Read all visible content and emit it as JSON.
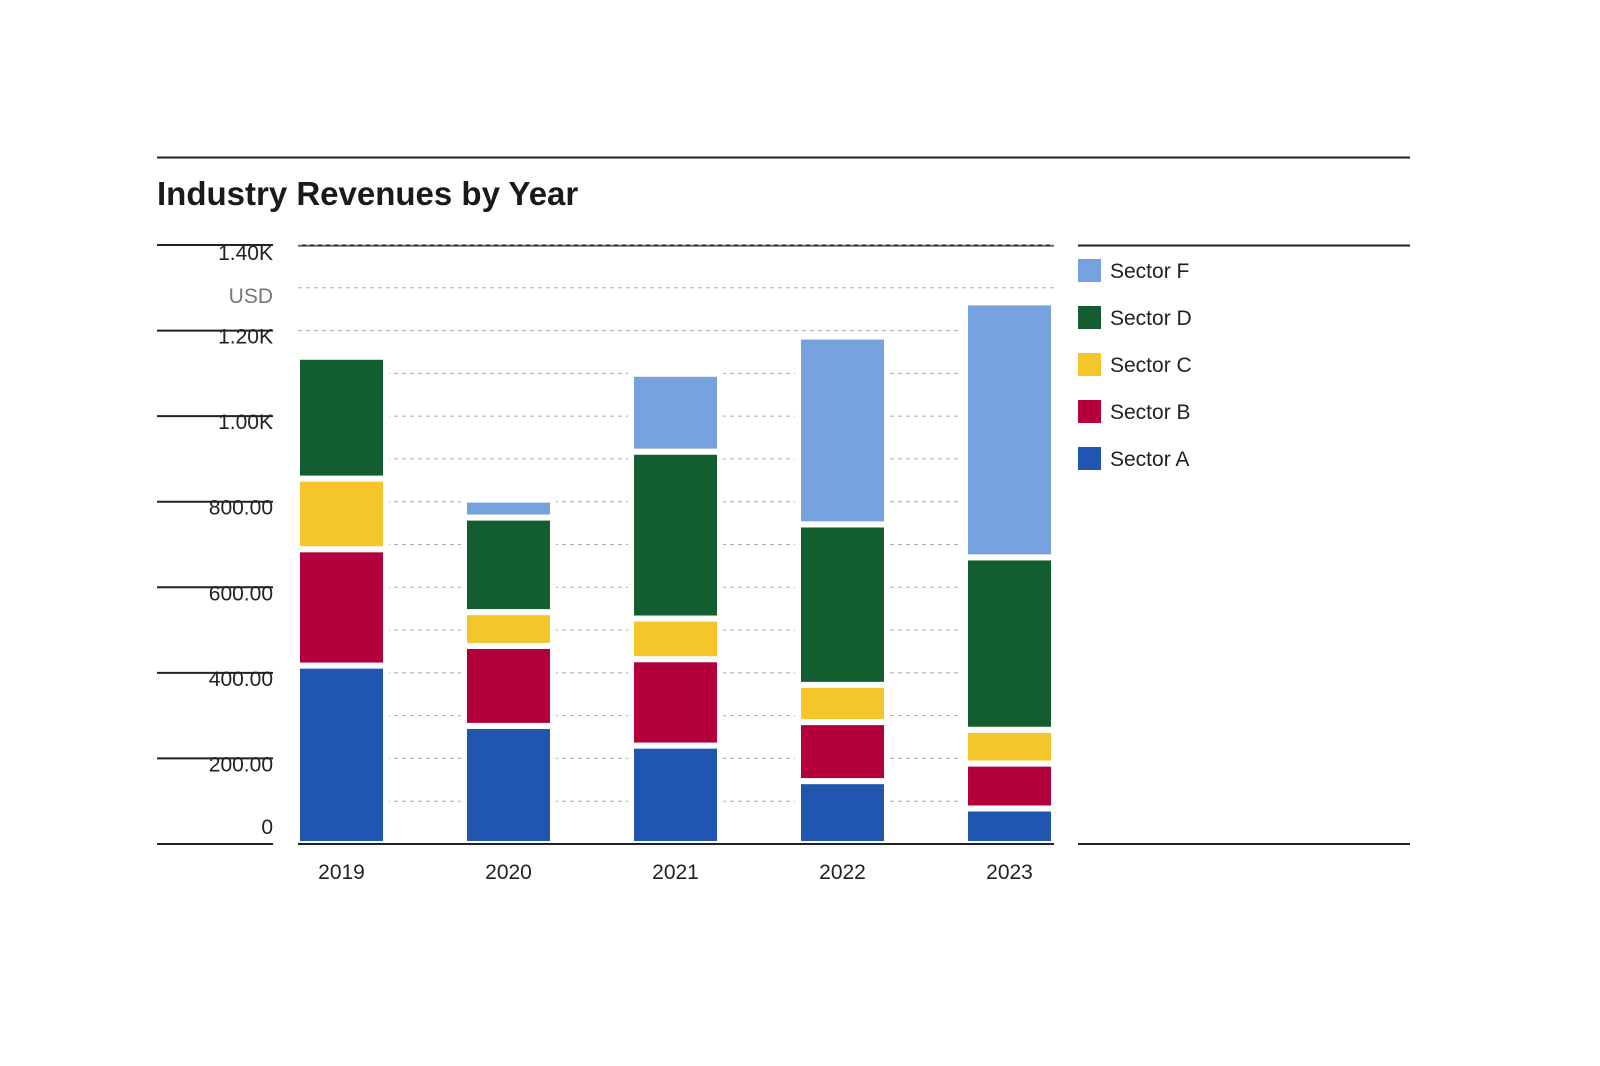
{
  "chart_data": {
    "type": "stacked_bar",
    "title": "Industry Revenues by Year",
    "y_unit": "USD",
    "categories": [
      "2019",
      "2020",
      "2021",
      "2022",
      "2023"
    ],
    "series": [
      {
        "name": "Sector A",
        "color": "#2156b0",
        "values": [
          417,
          276,
          230,
          147,
          83
        ]
      },
      {
        "name": "Sector B",
        "color": "#b3003c",
        "values": [
          272,
          187,
          202,
          138,
          105
        ]
      },
      {
        "name": "Sector C",
        "color": "#f4c62c",
        "values": [
          165,
          79,
          95,
          87,
          79
        ]
      },
      {
        "name": "Sector D",
        "color": "#135e31",
        "values": [
          285,
          221,
          390,
          375,
          403
        ]
      },
      {
        "name": "Sector F",
        "color": "#76a3e0",
        "values": [
          14,
          42,
          182,
          439,
          596
        ]
      }
    ],
    "ylim": [
      0,
      1400
    ],
    "yticks": [
      0,
      {
        "value": 200,
        "label": "200.00"
      },
      {
        "value": 400,
        "label": "400.00"
      },
      {
        "value": 600,
        "label": "600.00"
      },
      {
        "value": 800,
        "label": "800.00"
      },
      {
        "value": 1000,
        "label": "1.00K"
      },
      {
        "value": 1200,
        "label": "1.20K"
      },
      {
        "value": 1400,
        "label": "1.40K"
      }
    ],
    "grid": true,
    "legend": "right"
  }
}
